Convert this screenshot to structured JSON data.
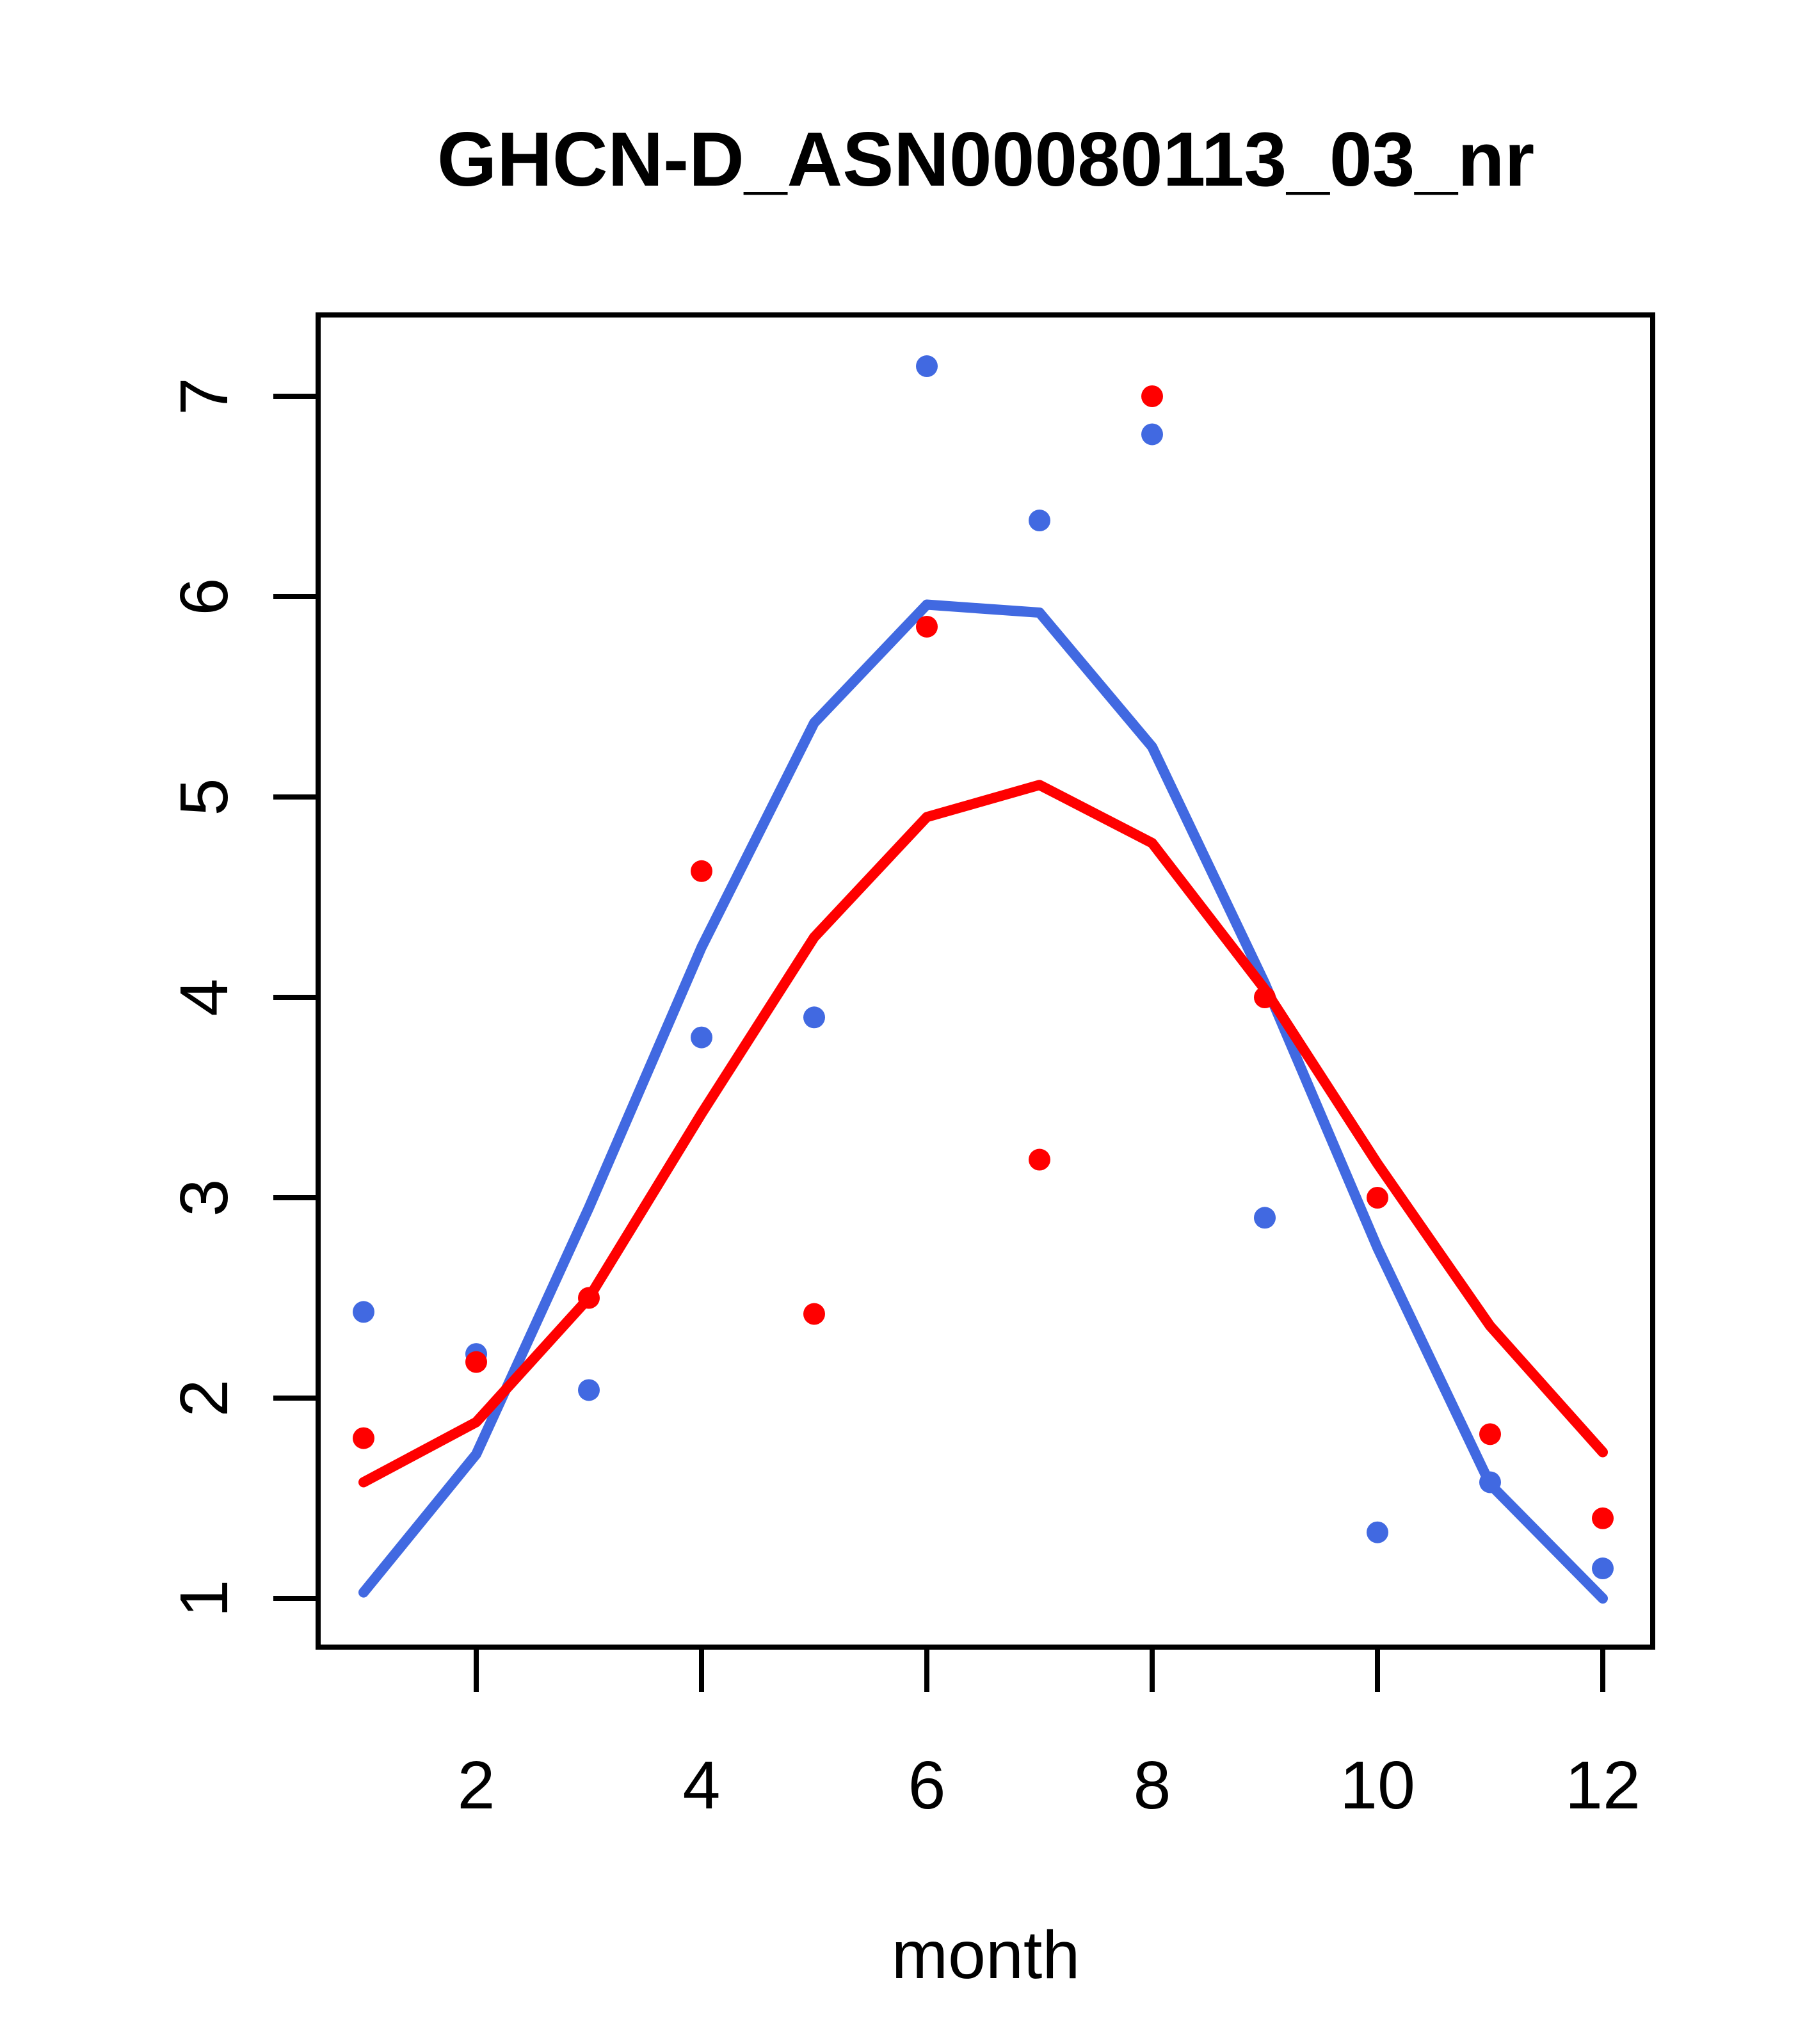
{
  "figure": {
    "title": "GHCN-D_ASN00080113_03_nr",
    "xlabel": "month"
  },
  "chart_data": {
    "type": "scatter",
    "title": "GHCN-D_ASN00080113_03_nr",
    "xlabel": "month",
    "ylabel": "",
    "grid": false,
    "legend": "none",
    "xlim": [
      0.56,
      12.44
    ],
    "ylim": [
      0.74,
      7.41
    ],
    "xticks": [
      2,
      4,
      6,
      8,
      10,
      12
    ],
    "yticks": [
      1,
      2,
      3,
      4,
      5,
      6,
      7
    ],
    "categories": [
      1,
      2,
      3,
      4,
      5,
      6,
      7,
      8,
      9,
      10,
      11,
      12
    ],
    "colors": {
      "blue": "#4169E1",
      "red": "#FF0000",
      "axis": "#000000"
    },
    "series": [
      {
        "name": "blue-points",
        "type": "scatter",
        "color": "#4169E1",
        "values": [
          2.43,
          2.22,
          2.04,
          3.8,
          3.9,
          7.15,
          6.38,
          6.81,
          2.9,
          1.33,
          1.58,
          1.15
        ]
      },
      {
        "name": "red-points",
        "type": "scatter",
        "color": "#FF0000",
        "values": [
          1.8,
          2.18,
          2.5,
          4.63,
          2.42,
          5.85,
          3.19,
          7.0,
          4.0,
          3.0,
          1.82,
          1.4
        ]
      },
      {
        "name": "blue-line",
        "type": "line",
        "color": "#4169E1",
        "values": [
          1.03,
          1.72,
          2.95,
          4.25,
          5.37,
          5.96,
          5.92,
          5.25,
          4.07,
          2.75,
          1.57,
          1.0
        ]
      },
      {
        "name": "red-line",
        "type": "line",
        "color": "#FF0000",
        "values": [
          1.58,
          1.88,
          2.5,
          3.42,
          4.3,
          4.9,
          5.06,
          4.77,
          4.04,
          3.17,
          2.36,
          1.73
        ]
      }
    ]
  }
}
